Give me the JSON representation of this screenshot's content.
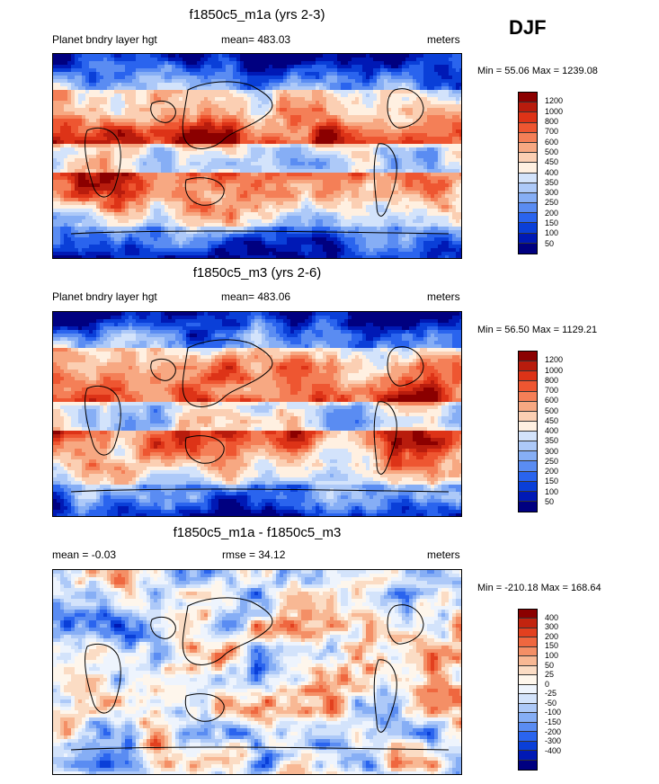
{
  "season": "DJF",
  "abs_colors": [
    "#000080",
    "#0019b5",
    "#0a3fd8",
    "#2a64ee",
    "#5a8cf2",
    "#86aef5",
    "#adc9f8",
    "#d3e3fb",
    "#fff0e1",
    "#fbcfb3",
    "#f7a882",
    "#f47f57",
    "#ee5631",
    "#dd3317",
    "#b81c0d",
    "#8b0000"
  ],
  "diff_colors": [
    "#000080",
    "#0019b5",
    "#0a3fd8",
    "#2a64ee",
    "#5a8cf2",
    "#86aef5",
    "#adc9f8",
    "#d3e3fb",
    "#eef4fd",
    "#fef6ec",
    "#fbdcc4",
    "#f8b894",
    "#f48f66",
    "#ef673f",
    "#e2401f",
    "#c2240f",
    "#8b0000"
  ],
  "land_color": "#000000",
  "panels": [
    {
      "title": "f1850c5_m1a (yrs 2-3)",
      "left_label": "Planet bndry layer hgt",
      "mean_label": "mean= 483.03",
      "units": "meters",
      "minmax": "Min =  55.06 Max = 1239.08",
      "legend_labels": [
        "1200",
        "1000",
        "800",
        "700",
        "600",
        "500",
        "450",
        "400",
        "350",
        "300",
        "250",
        "200",
        "150",
        "100",
        "50"
      ]
    },
    {
      "title": "f1850c5_m3 (yrs 2-6)",
      "left_label": "Planet bndry layer hgt",
      "mean_label": "mean= 483.06",
      "units": "meters",
      "minmax": "Min =  56.50 Max = 1129.21",
      "legend_labels": [
        "1200",
        "1000",
        "800",
        "700",
        "600",
        "500",
        "450",
        "400",
        "350",
        "300",
        "250",
        "200",
        "150",
        "100",
        "50"
      ]
    },
    {
      "title": "f1850c5_m1a - f1850c5_m3",
      "left_label": "mean =  -0.03",
      "mean_label": "rmse =  34.12",
      "units": "meters",
      "minmax": "Min = -210.18 Max = 168.64",
      "legend_labels": [
        "400",
        "300",
        "200",
        "150",
        "100",
        "50",
        "25",
        "0",
        "-25",
        "-50",
        "-100",
        "-150",
        "-200",
        "-300",
        "-400"
      ]
    }
  ],
  "chart_data": [
    {
      "type": "heatmap",
      "title": "f1850c5_m1a (yrs 2-3)",
      "field": "Planet bndry layer hgt",
      "units": "meters",
      "mean": 483.03,
      "min": 55.06,
      "max": 1239.08,
      "contour_levels": [
        50,
        100,
        150,
        200,
        250,
        300,
        350,
        400,
        450,
        500,
        600,
        700,
        800,
        1000,
        1200
      ]
    },
    {
      "type": "heatmap",
      "title": "f1850c5_m3 (yrs 2-6)",
      "field": "Planet bndry layer hgt",
      "units": "meters",
      "mean": 483.06,
      "min": 56.5,
      "max": 1129.21,
      "contour_levels": [
        50,
        100,
        150,
        200,
        250,
        300,
        350,
        400,
        450,
        500,
        600,
        700,
        800,
        1000,
        1200
      ]
    },
    {
      "type": "heatmap",
      "title": "f1850c5_m1a - f1850c5_m3",
      "units": "meters",
      "mean": -0.03,
      "rmse": 34.12,
      "min": -210.18,
      "max": 168.64,
      "contour_levels": [
        -400,
        -300,
        -200,
        -150,
        -100,
        -50,
        -25,
        0,
        25,
        50,
        100,
        150,
        200,
        300,
        400
      ]
    }
  ]
}
